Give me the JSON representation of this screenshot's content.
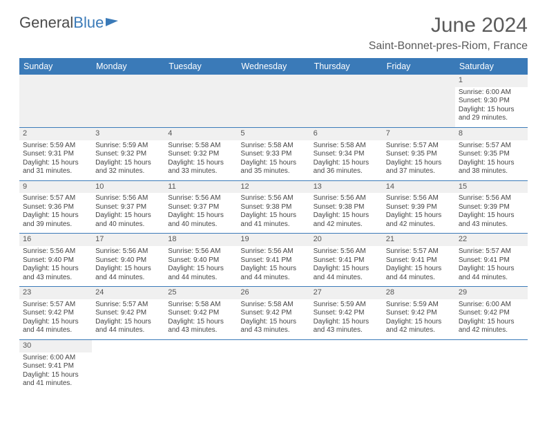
{
  "logo": {
    "text1": "General",
    "text2": "Blue"
  },
  "title": "June 2024",
  "location": "Saint-Bonnet-pres-Riom, France",
  "header_bg": "#3a7ab8",
  "header_fg": "#ffffff",
  "daynames": [
    "Sunday",
    "Monday",
    "Tuesday",
    "Wednesday",
    "Thursday",
    "Friday",
    "Saturday"
  ],
  "weeks": [
    [
      null,
      null,
      null,
      null,
      null,
      null,
      {
        "n": "1",
        "sr": "6:00 AM",
        "ss": "9:30 PM",
        "dl": "15 hours and 29 minutes."
      }
    ],
    [
      {
        "n": "2",
        "sr": "5:59 AM",
        "ss": "9:31 PM",
        "dl": "15 hours and 31 minutes."
      },
      {
        "n": "3",
        "sr": "5:59 AM",
        "ss": "9:32 PM",
        "dl": "15 hours and 32 minutes."
      },
      {
        "n": "4",
        "sr": "5:58 AM",
        "ss": "9:32 PM",
        "dl": "15 hours and 33 minutes."
      },
      {
        "n": "5",
        "sr": "5:58 AM",
        "ss": "9:33 PM",
        "dl": "15 hours and 35 minutes."
      },
      {
        "n": "6",
        "sr": "5:58 AM",
        "ss": "9:34 PM",
        "dl": "15 hours and 36 minutes."
      },
      {
        "n": "7",
        "sr": "5:57 AM",
        "ss": "9:35 PM",
        "dl": "15 hours and 37 minutes."
      },
      {
        "n": "8",
        "sr": "5:57 AM",
        "ss": "9:35 PM",
        "dl": "15 hours and 38 minutes."
      }
    ],
    [
      {
        "n": "9",
        "sr": "5:57 AM",
        "ss": "9:36 PM",
        "dl": "15 hours and 39 minutes."
      },
      {
        "n": "10",
        "sr": "5:56 AM",
        "ss": "9:37 PM",
        "dl": "15 hours and 40 minutes."
      },
      {
        "n": "11",
        "sr": "5:56 AM",
        "ss": "9:37 PM",
        "dl": "15 hours and 40 minutes."
      },
      {
        "n": "12",
        "sr": "5:56 AM",
        "ss": "9:38 PM",
        "dl": "15 hours and 41 minutes."
      },
      {
        "n": "13",
        "sr": "5:56 AM",
        "ss": "9:38 PM",
        "dl": "15 hours and 42 minutes."
      },
      {
        "n": "14",
        "sr": "5:56 AM",
        "ss": "9:39 PM",
        "dl": "15 hours and 42 minutes."
      },
      {
        "n": "15",
        "sr": "5:56 AM",
        "ss": "9:39 PM",
        "dl": "15 hours and 43 minutes."
      }
    ],
    [
      {
        "n": "16",
        "sr": "5:56 AM",
        "ss": "9:40 PM",
        "dl": "15 hours and 43 minutes."
      },
      {
        "n": "17",
        "sr": "5:56 AM",
        "ss": "9:40 PM",
        "dl": "15 hours and 44 minutes."
      },
      {
        "n": "18",
        "sr": "5:56 AM",
        "ss": "9:40 PM",
        "dl": "15 hours and 44 minutes."
      },
      {
        "n": "19",
        "sr": "5:56 AM",
        "ss": "9:41 PM",
        "dl": "15 hours and 44 minutes."
      },
      {
        "n": "20",
        "sr": "5:56 AM",
        "ss": "9:41 PM",
        "dl": "15 hours and 44 minutes."
      },
      {
        "n": "21",
        "sr": "5:57 AM",
        "ss": "9:41 PM",
        "dl": "15 hours and 44 minutes."
      },
      {
        "n": "22",
        "sr": "5:57 AM",
        "ss": "9:41 PM",
        "dl": "15 hours and 44 minutes."
      }
    ],
    [
      {
        "n": "23",
        "sr": "5:57 AM",
        "ss": "9:42 PM",
        "dl": "15 hours and 44 minutes."
      },
      {
        "n": "24",
        "sr": "5:57 AM",
        "ss": "9:42 PM",
        "dl": "15 hours and 44 minutes."
      },
      {
        "n": "25",
        "sr": "5:58 AM",
        "ss": "9:42 PM",
        "dl": "15 hours and 43 minutes."
      },
      {
        "n": "26",
        "sr": "5:58 AM",
        "ss": "9:42 PM",
        "dl": "15 hours and 43 minutes."
      },
      {
        "n": "27",
        "sr": "5:59 AM",
        "ss": "9:42 PM",
        "dl": "15 hours and 43 minutes."
      },
      {
        "n": "28",
        "sr": "5:59 AM",
        "ss": "9:42 PM",
        "dl": "15 hours and 42 minutes."
      },
      {
        "n": "29",
        "sr": "6:00 AM",
        "ss": "9:42 PM",
        "dl": "15 hours and 42 minutes."
      }
    ],
    [
      {
        "n": "30",
        "sr": "6:00 AM",
        "ss": "9:41 PM",
        "dl": "15 hours and 41 minutes."
      },
      null,
      null,
      null,
      null,
      null,
      null
    ]
  ],
  "labels": {
    "sunrise": "Sunrise:",
    "sunset": "Sunset:",
    "daylight": "Daylight:"
  }
}
